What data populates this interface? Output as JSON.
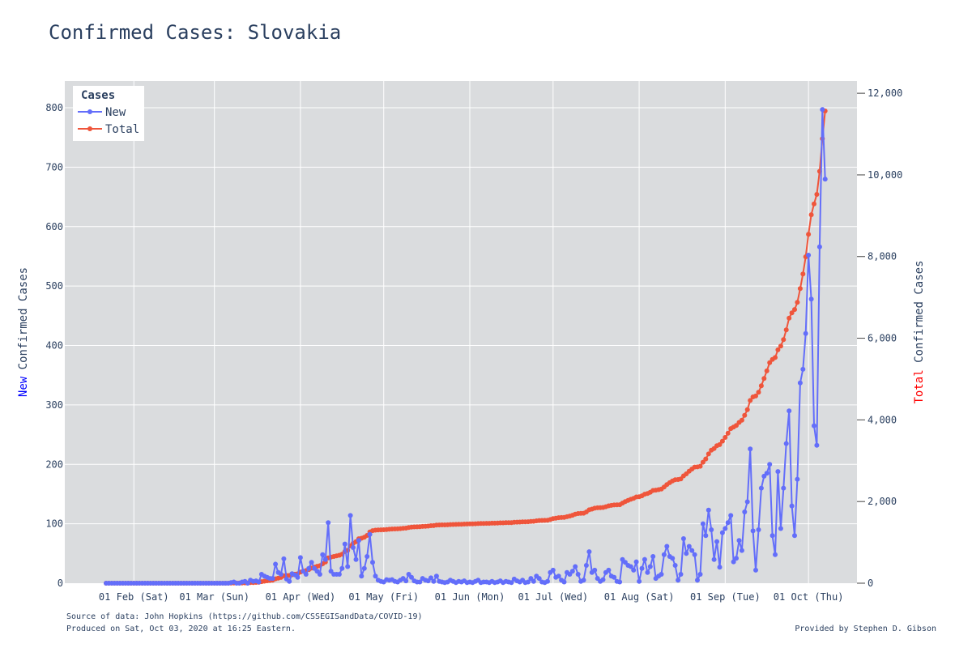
{
  "chart_data": {
    "type": "line",
    "title": "Confirmed Cases: Slovakia",
    "y_left_label": {
      "prefix": "New",
      "rest": " Confirmed Cases",
      "prefix_color": "#0000ff"
    },
    "y_right_label": {
      "prefix": "Total",
      "rest": " Confirmed Cases",
      "prefix_color": "#ff0000"
    },
    "x_start": "2020-01-22",
    "x_end": "2020-10-03",
    "x_ticks": [
      {
        "date": "2020-02-01",
        "label": "01 Feb (Sat)"
      },
      {
        "date": "2020-03-01",
        "label": "01 Mar (Sun)"
      },
      {
        "date": "2020-04-01",
        "label": "01 Apr (Wed)"
      },
      {
        "date": "2020-05-01",
        "label": "01 May (Fri)"
      },
      {
        "date": "2020-06-01",
        "label": "01 Jun (Mon)"
      },
      {
        "date": "2020-07-01",
        "label": "01 Jul (Wed)"
      },
      {
        "date": "2020-08-01",
        "label": "01 Aug (Sat)"
      },
      {
        "date": "2020-09-01",
        "label": "01 Sep (Tue)"
      },
      {
        "date": "2020-10-01",
        "label": "01 Oct (Thu)"
      }
    ],
    "y_left_ticks": [
      0,
      100,
      200,
      300,
      400,
      500,
      600,
      700,
      800
    ],
    "y_left_tick_labels": [
      "0",
      "100",
      "200",
      "300",
      "400",
      "500",
      "600",
      "700",
      "800"
    ],
    "y_right_ticks": [
      0,
      2000,
      4000,
      6000,
      8000,
      10000,
      12000
    ],
    "y_right_tick_labels": [
      "0",
      "2,000",
      "4,000",
      "6,000",
      "8,000",
      "10,000",
      "12,000"
    ],
    "y_left_range": [
      0,
      845
    ],
    "y_right_range": [
      0,
      12300
    ],
    "legend": {
      "title": "Cases",
      "placement": "top-left"
    },
    "grid": true,
    "series": [
      {
        "name": "New",
        "axis": "left",
        "color": "#636efa",
        "values": [
          0,
          0,
          0,
          0,
          0,
          0,
          0,
          0,
          0,
          0,
          0,
          0,
          0,
          0,
          0,
          0,
          0,
          0,
          0,
          0,
          0,
          0,
          0,
          0,
          0,
          0,
          0,
          0,
          0,
          0,
          0,
          0,
          0,
          0,
          0,
          0,
          0,
          0,
          0,
          0,
          0,
          0,
          0,
          0,
          0,
          1,
          2,
          0,
          0,
          2,
          3,
          0,
          5,
          3,
          4,
          2,
          15,
          12,
          10,
          8,
          8,
          32,
          18,
          15,
          41,
          7,
          3,
          16,
          14,
          10,
          43,
          20,
          15,
          25,
          35,
          25,
          20,
          15,
          48,
          40,
          102,
          20,
          15,
          15,
          15,
          25,
          66,
          28,
          114,
          60,
          40,
          72,
          12,
          25,
          45,
          82,
          35,
          12,
          5,
          3,
          2,
          6,
          5,
          6,
          3,
          2,
          5,
          8,
          4,
          15,
          10,
          4,
          2,
          2,
          8,
          5,
          4,
          9,
          3,
          12,
          3,
          2,
          1,
          2,
          5,
          3,
          1,
          3,
          2,
          4,
          1,
          2,
          1,
          3,
          5,
          1,
          2,
          2,
          1,
          3,
          1,
          2,
          4,
          1,
          3,
          2,
          1,
          7,
          4,
          2,
          5,
          1,
          2,
          8,
          3,
          12,
          8,
          2,
          1,
          3,
          18,
          22,
          10,
          12,
          5,
          2,
          18,
          15,
          20,
          28,
          15,
          3,
          5,
          30,
          53,
          18,
          22,
          8,
          3,
          6,
          18,
          22,
          12,
          10,
          3,
          2,
          40,
          35,
          30,
          28,
          22,
          36,
          3,
          25,
          40,
          18,
          28,
          45,
          8,
          12,
          15,
          48,
          62,
          45,
          42,
          30,
          5,
          15,
          75,
          50,
          62,
          55,
          48,
          5,
          15,
          100,
          80,
          123,
          90,
          40,
          70,
          27,
          85,
          92,
          102,
          114,
          36,
          42,
          72,
          55,
          120,
          137,
          226,
          88,
          22,
          90,
          160,
          180,
          185,
          200,
          80,
          48,
          188,
          92,
          160,
          235,
          290,
          130,
          80,
          175,
          337,
          360,
          420,
          552,
          478,
          265,
          232,
          566,
          797,
          680
        ],
        "totals": [
          0,
          0,
          0,
          0,
          0,
          0,
          0,
          0,
          0,
          0,
          0,
          0,
          0,
          0,
          0,
          0,
          0,
          0,
          0,
          0,
          0,
          0,
          0,
          0,
          0,
          0,
          0,
          0,
          0,
          0,
          0,
          0,
          0,
          0,
          0,
          0,
          0,
          0,
          0,
          0,
          0,
          0,
          0,
          0,
          0,
          1,
          3,
          3,
          3,
          5,
          8,
          8,
          13,
          16,
          20,
          22,
          37,
          49,
          59,
          67,
          75,
          107,
          125,
          140,
          181,
          188,
          191,
          207,
          221,
          231,
          274,
          294,
          309,
          334,
          369,
          394,
          414,
          429,
          477,
          517,
          619,
          639,
          654,
          669,
          684,
          709,
          775,
          803,
          917,
          977,
          1017,
          1089,
          1101,
          1126,
          1171,
          1253,
          1288,
          1300,
          1305,
          1308,
          1310,
          1316,
          1321,
          1327,
          1330,
          1332,
          1337,
          1345,
          1349,
          1364,
          1374,
          1378,
          1380,
          1382,
          1390,
          1395,
          1399,
          1408,
          1411,
          1423,
          1426,
          1428,
          1429,
          1431,
          1436,
          1439,
          1440,
          1443,
          1445,
          1449,
          1450,
          1452,
          1453,
          1456,
          1461,
          1462,
          1464,
          1466,
          1467,
          1470,
          1471,
          1473,
          1477,
          1478,
          1481,
          1483,
          1484,
          1491,
          1495,
          1497,
          1502,
          1503,
          1505,
          1513,
          1516,
          1528,
          1536,
          1538,
          1539,
          1542,
          1560,
          1582,
          1592,
          1604,
          1609,
          1611,
          1629,
          1644,
          1664,
          1692,
          1707,
          1710,
          1715,
          1745,
          1798,
          1816,
          1838,
          1846,
          1849,
          1855,
          1873,
          1895,
          1907,
          1917,
          1920,
          1922,
          1962,
          1997,
          2027,
          2055,
          2077,
          2113,
          2116,
          2141,
          2181,
          2199,
          2227,
          2272,
          2280,
          2292,
          2307,
          2355,
          2417,
          2462,
          2504,
          2534,
          2539,
          2554,
          2629,
          2679,
          2741,
          2796,
          2844,
          2849,
          2864,
          2964,
          3044,
          3167,
          3257,
          3297,
          3367,
          3394,
          3479,
          3571,
          3673,
          3787,
          3823,
          3865,
          3937,
          3992,
          4112,
          4249,
          4475,
          4563,
          4585,
          4675,
          4835,
          5015,
          5200,
          5400,
          5480,
          5528,
          5716,
          5808,
          5968,
          6203,
          6493,
          6623,
          6703,
          6878,
          7215,
          7575,
          7995,
          8547,
          9025,
          9290,
          9522,
          10088,
          10885,
          11565
        ]
      }
    ]
  },
  "footer": {
    "source": "Source of data: John Hopkins (https://github.com/CSSEGISandData/COVID-19)",
    "produced": "Produced on Sat, Oct 03, 2020 at 16:25 Eastern.",
    "credit": "Provided by Stephen D. Gibson"
  },
  "legend_labels": {
    "new": "New",
    "total": "Total"
  },
  "colors": {
    "new": "#636efa",
    "total": "#ef553b",
    "plot_bg": "#e5ecf6",
    "grid": "#ffffff"
  }
}
